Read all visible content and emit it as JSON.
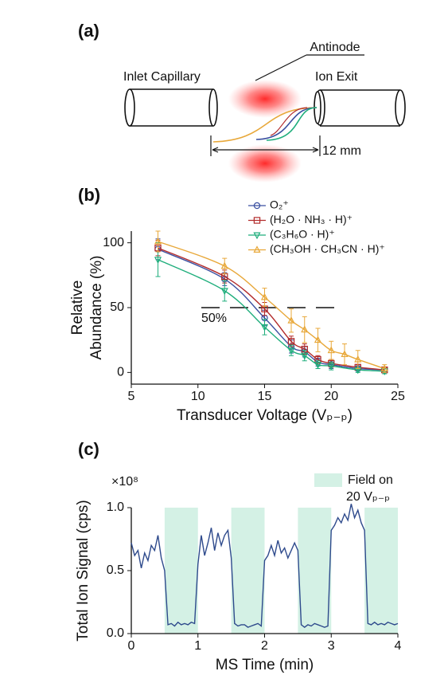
{
  "diagram": {
    "panel_label": "(a)",
    "antinode": "Antinode",
    "inlet": "Inlet Capillary",
    "exit": "Ion Exit",
    "distance": "12 mm"
  },
  "chart_data": [
    {
      "type": "line",
      "panel_label": "(b)",
      "xlabel": "Transducer Voltage (Vₚ₋ₚ)",
      "ylabel": [
        "Relative",
        "Abundance (%)"
      ],
      "xlim": [
        5,
        25
      ],
      "xticks": [
        5,
        10,
        15,
        20,
        25
      ],
      "ylim": [
        -9,
        109
      ],
      "yticks": [
        0,
        50,
        100
      ],
      "reference_line": {
        "value": 50,
        "label": "50%"
      },
      "series": [
        {
          "name": "O₂⁺",
          "color": "#3a4fa0",
          "marker": "circle",
          "x": [
            7,
            12,
            15,
            17,
            18,
            19,
            20,
            22,
            24
          ],
          "values": [
            95,
            72,
            42,
            20,
            16,
            8,
            6,
            3,
            2
          ],
          "errors": [
            8,
            5,
            6,
            5,
            4,
            3,
            3,
            2,
            2
          ]
        },
        {
          "name": "(H₂O · NH₃ · H)⁺",
          "color": "#b22a2a",
          "marker": "square",
          "x": [
            7,
            12,
            15,
            17,
            18,
            19,
            20,
            22,
            24
          ],
          "values": [
            96,
            74,
            49,
            24,
            18,
            10,
            7,
            4,
            2
          ],
          "errors": [
            6,
            5,
            5,
            4,
            4,
            3,
            3,
            2,
            2
          ]
        },
        {
          "name": "(C₃H₆O · H)⁺",
          "color": "#1fae7c",
          "marker": "triangle-down",
          "x": [
            7,
            12,
            15,
            17,
            18,
            19,
            20,
            22,
            24
          ],
          "values": [
            87,
            63,
            35,
            17,
            13,
            6,
            5,
            2,
            1
          ],
          "errors": [
            13,
            8,
            6,
            4,
            4,
            3,
            3,
            2,
            2
          ]
        },
        {
          "name": "(CH₃OH · CH₃CN · H)⁺",
          "color": "#e8a83a",
          "marker": "triangle-up",
          "x": [
            7,
            12,
            15,
            17,
            18,
            19,
            20,
            21,
            22,
            24
          ],
          "values": [
            101,
            82,
            58,
            40,
            33,
            25,
            17,
            14,
            10,
            3
          ],
          "errors": [
            8,
            6,
            7,
            9,
            10,
            9,
            7,
            8,
            7,
            3
          ]
        }
      ]
    },
    {
      "type": "line",
      "panel_label": "(c)",
      "xlabel": "MS Time (min)",
      "ylabel": [
        "Total Ion Signal (cps)"
      ],
      "y_multiplier": "×10⁸",
      "xlim": [
        0,
        4
      ],
      "xticks": [
        0,
        1,
        2,
        3,
        4
      ],
      "ylim": [
        0,
        1
      ],
      "yticks": [
        {
          "value": 0,
          "label": "0.0"
        },
        0.5,
        {
          "value": 1,
          "label": "1.0"
        }
      ],
      "shaded": {
        "name": "Field on",
        "color": "#d4f1e5",
        "spans": [
          [
            0.5,
            1
          ],
          [
            1.5,
            2
          ],
          [
            2.5,
            3
          ],
          [
            3.5,
            4
          ]
        ]
      },
      "annotations": [
        "20 Vₚ₋ₚ"
      ],
      "series": [
        {
          "color": "#2e4a8c",
          "x": [
            0,
            0.05,
            0.1,
            0.15,
            0.2,
            0.25,
            0.3,
            0.35,
            0.4,
            0.45,
            0.5,
            0.55,
            0.6,
            0.65,
            0.7,
            0.75,
            0.8,
            0.85,
            0.9,
            0.95,
            1,
            1.05,
            1.1,
            1.15,
            1.2,
            1.25,
            1.3,
            1.35,
            1.4,
            1.45,
            1.5,
            1.55,
            1.6,
            1.65,
            1.7,
            1.75,
            1.8,
            1.85,
            1.9,
            1.95,
            2,
            2.05,
            2.1,
            2.15,
            2.2,
            2.25,
            2.3,
            2.35,
            2.4,
            2.45,
            2.5,
            2.55,
            2.6,
            2.65,
            2.7,
            2.75,
            2.8,
            2.85,
            2.9,
            2.95,
            3,
            3.05,
            3.1,
            3.15,
            3.2,
            3.25,
            3.3,
            3.35,
            3.4,
            3.45,
            3.5,
            3.55,
            3.6,
            3.65,
            3.7,
            3.75,
            3.8,
            3.85,
            3.9,
            3.95,
            4
          ],
          "values": [
            0.72,
            0.62,
            0.66,
            0.52,
            0.64,
            0.58,
            0.7,
            0.66,
            0.78,
            0.6,
            0.5,
            0.07,
            0.08,
            0.06,
            0.09,
            0.07,
            0.08,
            0.07,
            0.09,
            0.08,
            0.55,
            0.78,
            0.62,
            0.72,
            0.84,
            0.66,
            0.8,
            0.7,
            0.78,
            0.82,
            0.6,
            0.08,
            0.06,
            0.07,
            0.07,
            0.05,
            0.06,
            0.07,
            0.08,
            0.06,
            0.58,
            0.62,
            0.7,
            0.62,
            0.74,
            0.64,
            0.68,
            0.6,
            0.66,
            0.72,
            0.66,
            0.07,
            0.05,
            0.07,
            0.06,
            0.08,
            0.07,
            0.06,
            0.05,
            0.06,
            0.82,
            0.86,
            0.92,
            0.88,
            0.95,
            0.9,
            1.03,
            0.92,
            0.98,
            0.88,
            0.82,
            0.08,
            0.07,
            0.09,
            0.07,
            0.08,
            0.07,
            0.09,
            0.08,
            0.07,
            0.08
          ]
        }
      ]
    }
  ]
}
